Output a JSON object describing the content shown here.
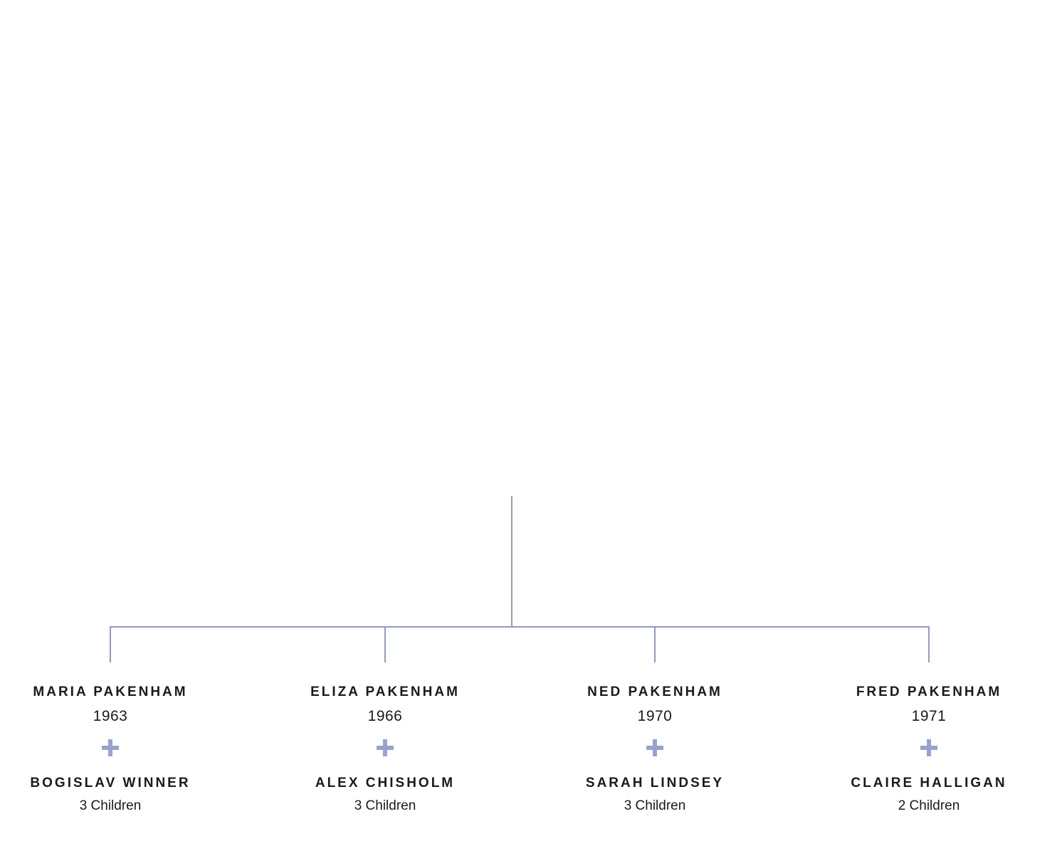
{
  "colors": {
    "background": "#ffffff",
    "line": "#9199c8",
    "plus": "#99a2cf",
    "text": "#1a1a1a"
  },
  "family_tree": {
    "entries": [
      {
        "name": "MARIA PAKENHAM",
        "year": "1963",
        "plus": "+",
        "spouse_name": "BOGISLAV WINNER",
        "children": "3 Children"
      },
      {
        "name": "ELIZA PAKENHAM",
        "year": "1966",
        "plus": "+",
        "spouse_name": "ALEX CHISHOLM",
        "children": "3 Children"
      },
      {
        "name": "NED PAKENHAM",
        "year": "1970",
        "plus": "+",
        "spouse_name": "SARAH LINDSEY",
        "children": "3 Children"
      },
      {
        "name": "FRED PAKENHAM",
        "year": "1971",
        "plus": "+",
        "spouse_name": "CLAIRE HALLIGAN",
        "children": "2 Children"
      }
    ]
  }
}
